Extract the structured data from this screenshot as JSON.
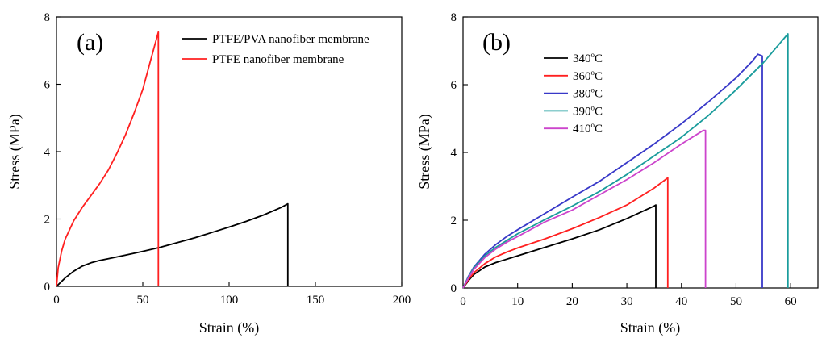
{
  "chart_data": [
    {
      "type": "line",
      "panel_label": "(a)",
      "xlabel": "Strain (%)",
      "ylabel": "Stress (MPa)",
      "xlim": [
        0,
        200
      ],
      "ylim": [
        0,
        8
      ],
      "xticks": [
        0,
        50,
        100,
        150,
        200
      ],
      "yticks": [
        0,
        2,
        4,
        6,
        8
      ],
      "legend_position": "top-right",
      "series": [
        {
          "name": "PTFE/PVA nanofiber membrane",
          "color": "#000000",
          "x": [
            0,
            2,
            5,
            10,
            15,
            20,
            25,
            30,
            40,
            50,
            60,
            70,
            80,
            90,
            100,
            110,
            120,
            130,
            134,
            134
          ],
          "y": [
            0,
            0.1,
            0.25,
            0.45,
            0.6,
            0.7,
            0.77,
            0.82,
            0.93,
            1.04,
            1.16,
            1.3,
            1.44,
            1.6,
            1.76,
            1.93,
            2.12,
            2.34,
            2.45,
            0
          ]
        },
        {
          "name": "PTFE nanofiber membrane",
          "color": "#ff2020",
          "x": [
            0,
            1,
            3,
            5,
            10,
            15,
            20,
            25,
            30,
            35,
            40,
            45,
            50,
            55,
            59,
            59
          ],
          "y": [
            0,
            0.55,
            1.05,
            1.4,
            1.95,
            2.35,
            2.7,
            3.05,
            3.45,
            3.95,
            4.5,
            5.15,
            5.85,
            6.8,
            7.55,
            0
          ]
        }
      ]
    },
    {
      "type": "line",
      "panel_label": "(b)",
      "xlabel": "Strain (%)",
      "ylabel": "Stress (MPa)",
      "xlim": [
        0,
        65
      ],
      "ylim": [
        0,
        8
      ],
      "xticks": [
        0,
        10,
        20,
        30,
        40,
        50,
        60
      ],
      "yticks": [
        0,
        2,
        4,
        6,
        8
      ],
      "legend_position": "top-left",
      "series": [
        {
          "name": "340",
          "unit": "oC",
          "color": "#000000",
          "x": [
            0,
            1,
            2,
            4,
            6,
            8,
            10,
            15,
            20,
            25,
            30,
            35,
            35.3,
            35.3
          ],
          "y": [
            0,
            0.22,
            0.4,
            0.62,
            0.75,
            0.85,
            0.95,
            1.2,
            1.45,
            1.72,
            2.05,
            2.42,
            2.45,
            0
          ]
        },
        {
          "name": "360",
          "unit": "oC",
          "color": "#ff2020",
          "x": [
            0,
            1,
            2,
            4,
            6,
            8,
            10,
            15,
            20,
            25,
            30,
            35,
            37.5,
            37.5
          ],
          "y": [
            0,
            0.25,
            0.45,
            0.72,
            0.92,
            1.06,
            1.18,
            1.45,
            1.75,
            2.08,
            2.45,
            2.95,
            3.25,
            0
          ]
        },
        {
          "name": "380",
          "unit": "oC",
          "color": "#3838c8",
          "x": [
            0,
            1,
            2,
            4,
            6,
            8,
            10,
            15,
            20,
            25,
            30,
            35,
            40,
            45,
            50,
            53,
            54,
            54.8,
            54.8
          ],
          "y": [
            0,
            0.35,
            0.62,
            1.0,
            1.28,
            1.52,
            1.72,
            2.2,
            2.68,
            3.15,
            3.7,
            4.25,
            4.85,
            5.5,
            6.2,
            6.7,
            6.9,
            6.85,
            0
          ]
        },
        {
          "name": "390",
          "unit": "oC",
          "color": "#1a9c9c",
          "x": [
            0,
            1,
            2,
            4,
            6,
            8,
            10,
            15,
            20,
            25,
            30,
            35,
            40,
            45,
            50,
            55,
            59.5,
            59.5
          ],
          "y": [
            0,
            0.33,
            0.6,
            0.95,
            1.2,
            1.4,
            1.6,
            2.02,
            2.42,
            2.85,
            3.35,
            3.9,
            4.45,
            5.1,
            5.85,
            6.65,
            7.5,
            0
          ]
        },
        {
          "name": "410",
          "unit": "oC",
          "color": "#cc44cc",
          "x": [
            0,
            1,
            2,
            4,
            6,
            8,
            10,
            15,
            20,
            25,
            30,
            35,
            40,
            44,
            44,
            44.4,
            44.4
          ],
          "y": [
            0,
            0.3,
            0.55,
            0.9,
            1.15,
            1.35,
            1.52,
            1.95,
            2.3,
            2.75,
            3.2,
            3.7,
            4.25,
            4.65,
            4.65,
            4.65,
            0
          ]
        }
      ]
    }
  ]
}
